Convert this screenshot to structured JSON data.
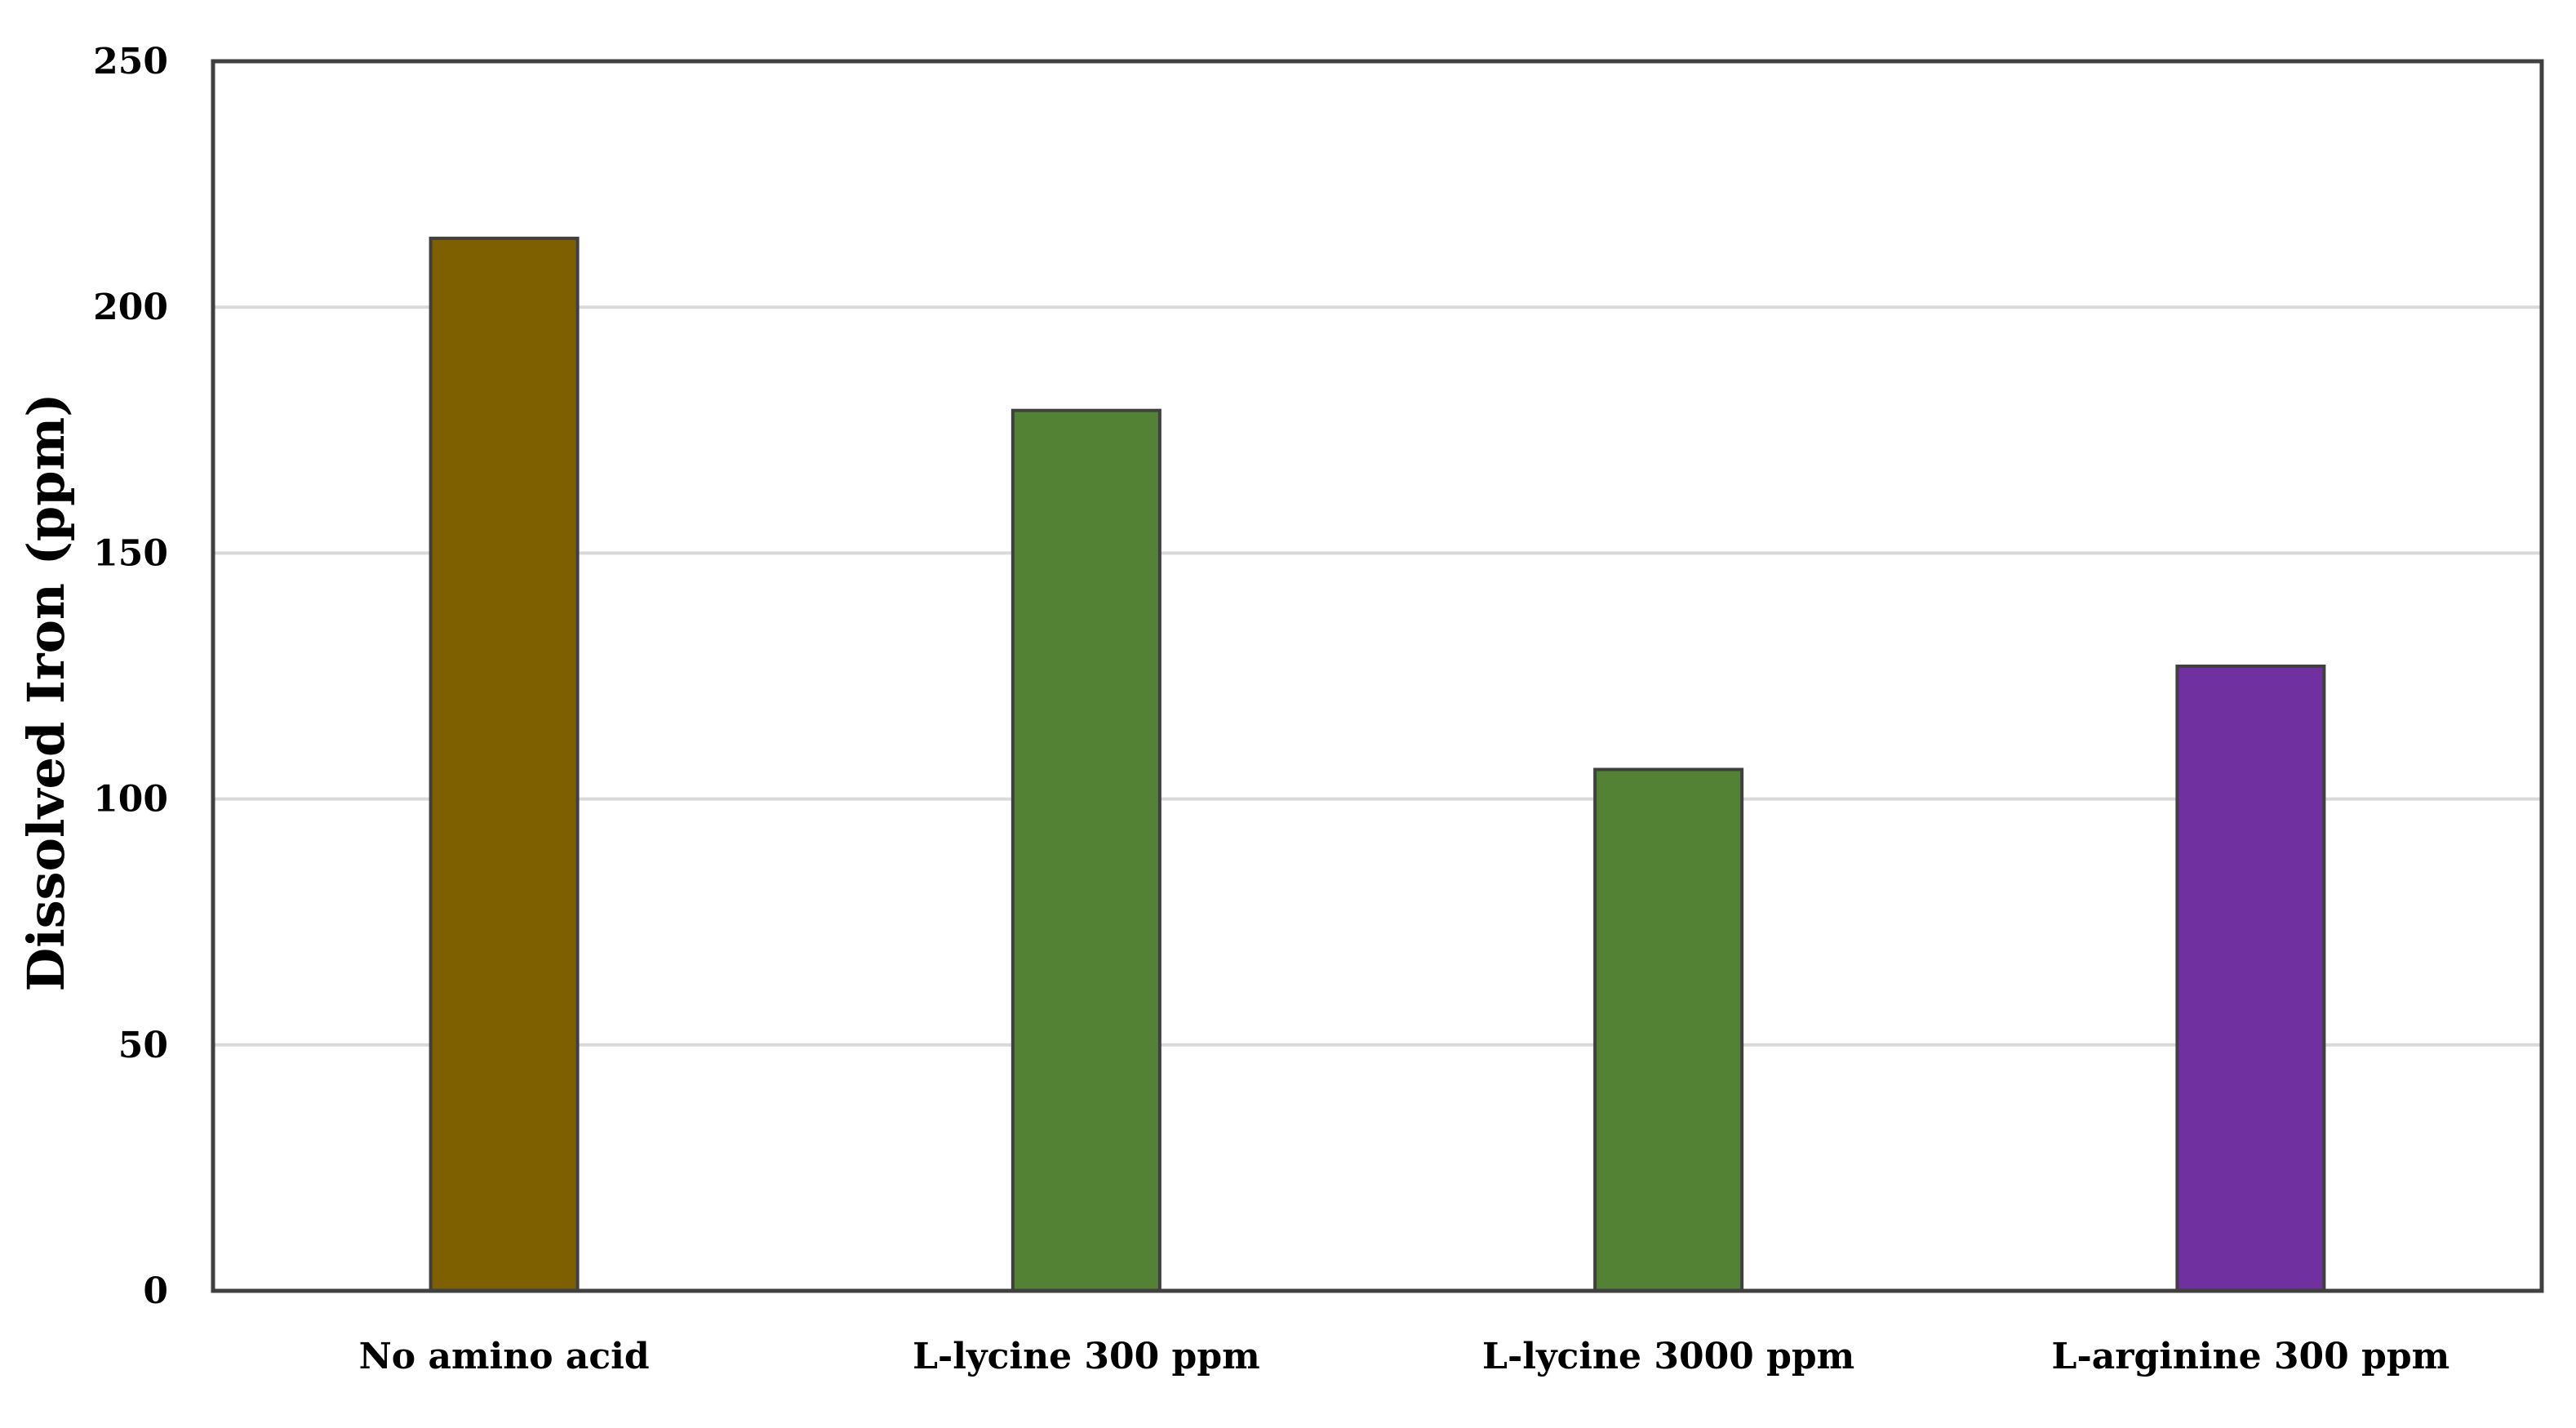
{
  "chart_data": {
    "type": "bar",
    "title": "",
    "xlabel": "",
    "ylabel": "Dissolved Iron (ppm)",
    "ylim": [
      0,
      250
    ],
    "yticks": [
      0,
      50,
      100,
      150,
      200,
      250
    ],
    "grid": true,
    "legend": "none",
    "categories": [
      "No amino acid",
      "L-lycine 300 ppm",
      "L-lycine 3000 ppm",
      "L-arginine 300 ppm"
    ],
    "values": [
      214,
      179,
      106,
      127
    ],
    "colors": [
      "#7f6000",
      "#548235",
      "#548235",
      "#7030a0"
    ],
    "bar_edge_color": "#404040",
    "grid_color": "#d9d9d9",
    "frame_color": "#404040"
  }
}
